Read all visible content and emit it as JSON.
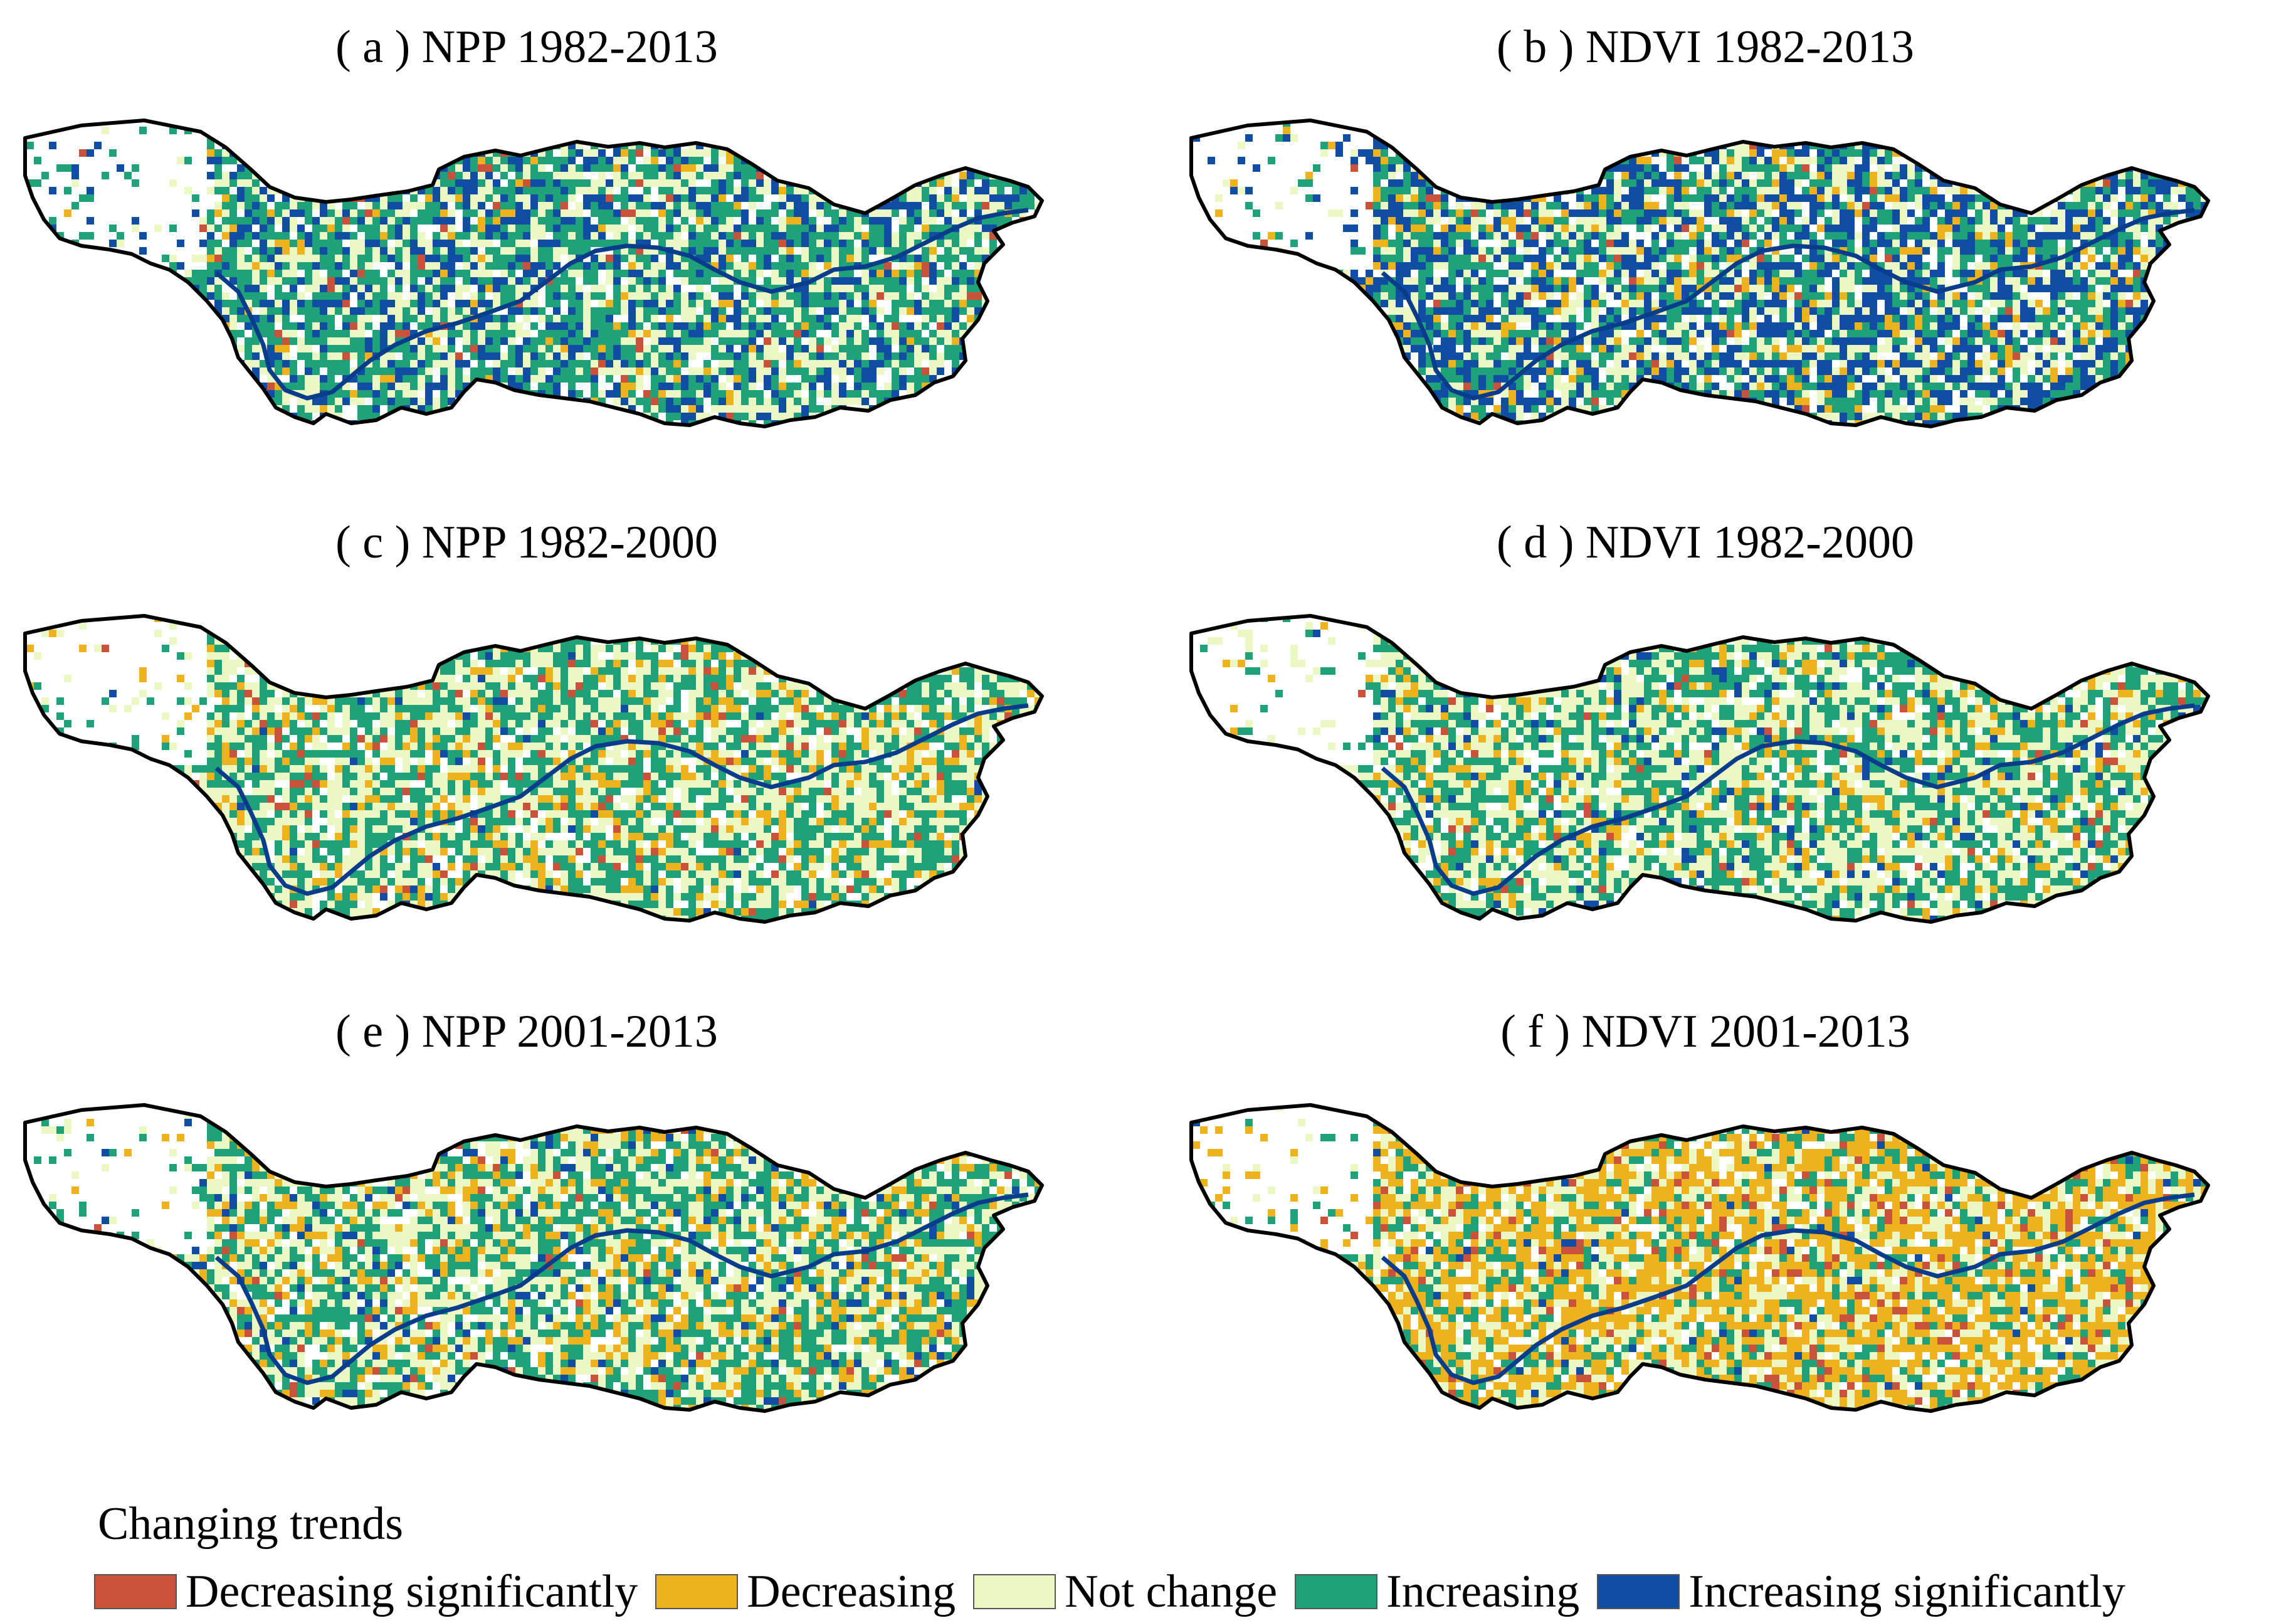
{
  "panels": [
    {
      "id": "a",
      "title": "( a ) NPP 1982-2013",
      "weights": {
        "decreasing_significantly": 0.02,
        "decreasing": 0.04,
        "not_change": 0.3,
        "increasing": 0.42,
        "increasing_significantly": 0.22
      }
    },
    {
      "id": "b",
      "title": "( b ) NDVI 1982-2013",
      "weights": {
        "decreasing_significantly": 0.02,
        "decreasing": 0.1,
        "not_change": 0.22,
        "increasing": 0.3,
        "increasing_significantly": 0.36
      }
    },
    {
      "id": "c",
      "title": "( c ) NPP 1982-2000",
      "weights": {
        "decreasing_significantly": 0.03,
        "decreasing": 0.14,
        "not_change": 0.38,
        "increasing": 0.43,
        "increasing_significantly": 0.02
      }
    },
    {
      "id": "d",
      "title": "( d ) NDVI 1982-2000",
      "weights": {
        "decreasing_significantly": 0.02,
        "decreasing": 0.12,
        "not_change": 0.4,
        "increasing": 0.4,
        "increasing_significantly": 0.06
      }
    },
    {
      "id": "e",
      "title": "( e ) NPP 2001-2013",
      "weights": {
        "decreasing_significantly": 0.02,
        "decreasing": 0.18,
        "not_change": 0.36,
        "increasing": 0.38,
        "increasing_significantly": 0.06
      }
    },
    {
      "id": "f",
      "title": "( f ) NDVI 2001-2013",
      "weights": {
        "decreasing_significantly": 0.07,
        "decreasing": 0.45,
        "not_change": 0.26,
        "increasing": 0.2,
        "increasing_significantly": 0.02
      }
    }
  ],
  "legend": {
    "title": "Changing trends",
    "items": [
      {
        "key": "decreasing_significantly",
        "label": "Decreasing significantly",
        "color": "#c8533a"
      },
      {
        "key": "decreasing",
        "label": "Decreasing",
        "color": "#eeb21c"
      },
      {
        "key": "not_change",
        "label": "Not change",
        "color": "#ecf8c4"
      },
      {
        "key": "increasing",
        "label": "Increasing",
        "color": "#1fa27a"
      },
      {
        "key": "increasing_significantly",
        "label": "Increasing significantly",
        "color": "#0f4ea3"
      }
    ]
  },
  "colors": {
    "boundary": "#000000",
    "river": "#0a3c8c",
    "no_data": "#ffffff"
  }
}
